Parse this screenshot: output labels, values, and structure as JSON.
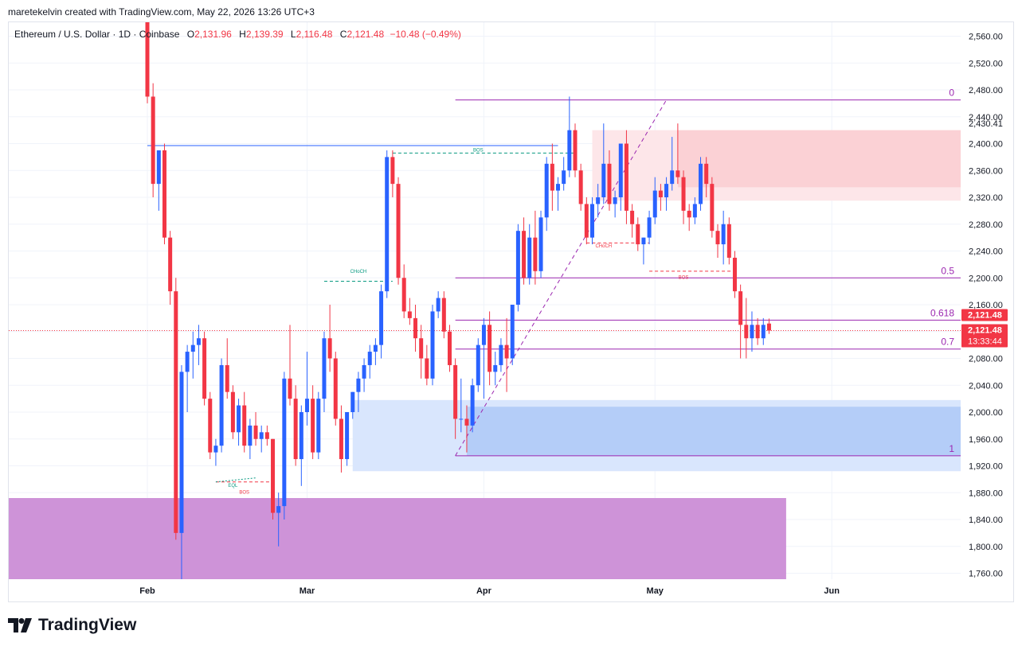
{
  "credit": "maretekelvin created with TradingView.com, May 22, 2026 13:26 UTC+3",
  "legend": {
    "symbol": "Ethereum / U.S. Dollar · 1D · Coinbase",
    "open_label": "O",
    "open": "2,131.96",
    "high_label": "H",
    "high": "2,139.39",
    "low_label": "L",
    "low": "2,116.48",
    "close_label": "C",
    "close": "2,121.48",
    "change": "−10.48 (−0.49%)"
  },
  "brand": {
    "name": "TradingView"
  },
  "colors": {
    "up": "#2962ff",
    "down": "#f23645",
    "fib": "#9c27b0",
    "grid": "#f0f3fa",
    "price_badge": "#f23645"
  },
  "chart_data": {
    "type": "candlestick",
    "ylim": [
      1750,
      2580
    ],
    "y_ticks": [
      "1,760.00",
      "1,800.00",
      "1,840.00",
      "1,880.00",
      "1,920.00",
      "1,960.00",
      "2,000.00",
      "2,040.00",
      "2,080.00",
      "2,120.00",
      "2,160.00",
      "2,200.00",
      "2,240.00",
      "2,280.00",
      "2,320.00",
      "2,360.00",
      "2,400.00",
      "2,440.00",
      "2,480.00",
      "2,520.00",
      "2,560.00"
    ],
    "y_tick_values": [
      1760,
      1800,
      1840,
      1880,
      1920,
      1960,
      2000,
      2040,
      2080,
      2120,
      2160,
      2200,
      2240,
      2280,
      2320,
      2360,
      2400,
      2440,
      2480,
      2520,
      2560
    ],
    "x_labels": [
      {
        "label": "Feb",
        "day": 0
      },
      {
        "label": "Mar",
        "day": 28
      },
      {
        "label": "Apr",
        "day": 59
      },
      {
        "label": "May",
        "day": 89
      },
      {
        "label": "Jun",
        "day": 120
      }
    ],
    "first_date": "2026-01-31",
    "candles": [
      [
        2600,
        2620,
        2460,
        2470
      ],
      [
        2470,
        2490,
        2320,
        2340
      ],
      [
        2340,
        2390,
        2300,
        2390
      ],
      [
        2390,
        2400,
        2250,
        2260
      ],
      [
        2260,
        2270,
        2160,
        2180
      ],
      [
        2180,
        2200,
        1810,
        1820
      ],
      [
        1820,
        2070,
        1750,
        2060
      ],
      [
        2060,
        2100,
        2000,
        2090
      ],
      [
        2090,
        2120,
        2050,
        2100
      ],
      [
        2100,
        2130,
        2070,
        2110
      ],
      [
        2110,
        2120,
        2010,
        2020
      ],
      [
        2020,
        2030,
        1930,
        1940
      ],
      [
        1940,
        1960,
        1920,
        1950
      ],
      [
        1950,
        2080,
        1940,
        2070
      ],
      [
        2070,
        2110,
        2020,
        2030
      ],
      [
        2030,
        2040,
        1960,
        1970
      ],
      [
        1970,
        2020,
        1950,
        2010
      ],
      [
        2010,
        2030,
        1940,
        1950
      ],
      [
        1950,
        1990,
        1930,
        1980
      ],
      [
        1980,
        2000,
        1950,
        1960
      ],
      [
        1960,
        1980,
        1940,
        1970
      ],
      [
        1970,
        1980,
        1950,
        1960
      ],
      [
        1960,
        1960,
        1840,
        1850
      ],
      [
        1850,
        1880,
        1800,
        1860
      ],
      [
        1860,
        2060,
        1840,
        2050
      ],
      [
        2050,
        2130,
        2010,
        2020
      ],
      [
        2020,
        2040,
        1920,
        1930
      ],
      [
        1930,
        2010,
        1890,
        2000
      ],
      [
        2000,
        2090,
        1980,
        2020
      ],
      [
        2020,
        2040,
        1930,
        1940
      ],
      [
        1940,
        2030,
        1930,
        2020
      ],
      [
        2020,
        2120,
        2000,
        2110
      ],
      [
        2110,
        2160,
        2060,
        2080
      ],
      [
        2080,
        2090,
        1980,
        1990
      ],
      [
        1990,
        2010,
        1910,
        1930
      ],
      [
        1930,
        2000,
        1920,
        2000
      ],
      [
        2000,
        2030,
        1990,
        2030
      ],
      [
        2030,
        2060,
        2000,
        2050
      ],
      [
        2050,
        2080,
        2030,
        2070
      ],
      [
        2070,
        2100,
        2050,
        2090
      ],
      [
        2090,
        2110,
        2070,
        2100
      ],
      [
        2100,
        2190,
        2080,
        2180
      ],
      [
        2180,
        2390,
        2170,
        2380
      ],
      [
        2380,
        2390,
        2320,
        2340
      ],
      [
        2340,
        2350,
        2190,
        2200
      ],
      [
        2200,
        2220,
        2140,
        2150
      ],
      [
        2150,
        2170,
        2130,
        2140
      ],
      [
        2140,
        2160,
        2090,
        2110
      ],
      [
        2110,
        2130,
        2050,
        2080
      ],
      [
        2080,
        2100,
        2040,
        2050
      ],
      [
        2050,
        2160,
        2040,
        2150
      ],
      [
        2150,
        2180,
        2140,
        2170
      ],
      [
        2170,
        2180,
        2110,
        2120
      ],
      [
        2120,
        2130,
        2060,
        2070
      ],
      [
        2070,
        2080,
        1960,
        1990
      ],
      [
        1990,
        2050,
        1970,
        1990
      ],
      [
        1990,
        2010,
        1940,
        1980
      ],
      [
        1980,
        2050,
        1970,
        2040
      ],
      [
        2040,
        2110,
        2030,
        2100
      ],
      [
        2100,
        2140,
        2020,
        2130
      ],
      [
        2130,
        2150,
        2040,
        2060
      ],
      [
        2060,
        2090,
        2040,
        2070
      ],
      [
        2070,
        2110,
        2060,
        2100
      ],
      [
        2100,
        2140,
        2030,
        2080
      ],
      [
        2080,
        2160,
        2070,
        2160
      ],
      [
        2160,
        2280,
        2150,
        2270
      ],
      [
        2270,
        2290,
        2190,
        2200
      ],
      [
        2200,
        2280,
        2190,
        2260
      ],
      [
        2260,
        2300,
        2190,
        2210
      ],
      [
        2210,
        2300,
        2200,
        2290
      ],
      [
        2290,
        2380,
        2270,
        2370
      ],
      [
        2370,
        2400,
        2300,
        2330
      ],
      [
        2330,
        2350,
        2300,
        2340
      ],
      [
        2340,
        2380,
        2330,
        2360
      ],
      [
        2360,
        2470,
        2350,
        2420
      ],
      [
        2420,
        2430,
        2350,
        2360
      ],
      [
        2360,
        2370,
        2300,
        2310
      ],
      [
        2310,
        2320,
        2250,
        2260
      ],
      [
        2260,
        2320,
        2250,
        2310
      ],
      [
        2310,
        2340,
        2290,
        2320
      ],
      [
        2320,
        2430,
        2310,
        2370
      ],
      [
        2370,
        2390,
        2300,
        2310
      ],
      [
        2310,
        2330,
        2290,
        2320
      ],
      [
        2320,
        2400,
        2300,
        2400
      ],
      [
        2400,
        2420,
        2280,
        2300
      ],
      [
        2300,
        2310,
        2260,
        2280
      ],
      [
        2280,
        2290,
        2240,
        2250
      ],
      [
        2250,
        2260,
        2220,
        2260
      ],
      [
        2260,
        2300,
        2250,
        2290
      ],
      [
        2290,
        2350,
        2280,
        2330
      ],
      [
        2330,
        2340,
        2300,
        2320
      ],
      [
        2320,
        2350,
        2300,
        2340
      ],
      [
        2340,
        2410,
        2330,
        2360
      ],
      [
        2360,
        2430,
        2340,
        2350
      ],
      [
        2350,
        2360,
        2280,
        2300
      ],
      [
        2300,
        2310,
        2270,
        2290
      ],
      [
        2290,
        2320,
        2280,
        2310
      ],
      [
        2310,
        2380,
        2300,
        2370
      ],
      [
        2370,
        2380,
        2320,
        2340
      ],
      [
        2340,
        2350,
        2260,
        2270
      ],
      [
        2270,
        2280,
        2230,
        2250
      ],
      [
        2250,
        2300,
        2220,
        2280
      ],
      [
        2280,
        2290,
        2220,
        2230
      ],
      [
        2230,
        2240,
        2170,
        2180
      ],
      [
        2180,
        2190,
        2080,
        2130
      ],
      [
        2130,
        2170,
        2080,
        2110
      ],
      [
        2110,
        2150,
        2090,
        2130
      ],
      [
        2130,
        2140,
        2100,
        2110
      ],
      [
        2110,
        2140,
        2100,
        2130
      ],
      [
        2131.96,
        2139.39,
        2116.48,
        2121.48
      ]
    ],
    "zones": [
      {
        "name": "supply-zone-outer",
        "from_day": 78,
        "to_day": 150,
        "low": 2315,
        "high": 2420,
        "color": "#fde6e9"
      },
      {
        "name": "supply-zone-inner",
        "from_day": 93,
        "to_day": 150,
        "low": 2335,
        "high": 2420,
        "color": "#fbd1d5"
      },
      {
        "name": "demand-zone-outer",
        "from_day": 36,
        "to_day": 150,
        "low": 1912,
        "high": 2018,
        "color": "#d9e6fd"
      },
      {
        "name": "demand-zone-inner",
        "from_day": 56,
        "to_day": 150,
        "low": 1935,
        "high": 2008,
        "color": "#b4cdf8"
      },
      {
        "name": "purple-zone",
        "from_day": -25,
        "to_day": 112,
        "low": 1750,
        "high": 1872,
        "color": "#ce93d8"
      }
    ],
    "fib_levels": [
      {
        "label": "0",
        "value": 2465
      },
      {
        "label": "0.5",
        "value": 2200
      },
      {
        "label": "0.618",
        "value": 2137
      },
      {
        "label": "0.7",
        "value": 2094
      },
      {
        "label": "1",
        "value": 1935
      }
    ],
    "fib_from_day": 54,
    "annotations": [
      {
        "label": "BOS",
        "day": 58,
        "price": 2386,
        "color": "#089981"
      },
      {
        "label": "CHoCH",
        "day": 37,
        "price": 2205,
        "color": "#089981"
      },
      {
        "label": "CHoCH",
        "day": 80,
        "price": 2243,
        "color": "#f23645"
      },
      {
        "label": "BOS",
        "day": 94,
        "price": 2196,
        "color": "#f23645"
      },
      {
        "label": "EQL",
        "day": 15,
        "price": 1886,
        "color": "#089981"
      },
      {
        "label": "BOS",
        "day": 17,
        "price": 1876,
        "color": "#f23645"
      }
    ],
    "current_price": "2,121.48",
    "countdown": "13:33:44",
    "extra_tick": "2,430.41"
  }
}
